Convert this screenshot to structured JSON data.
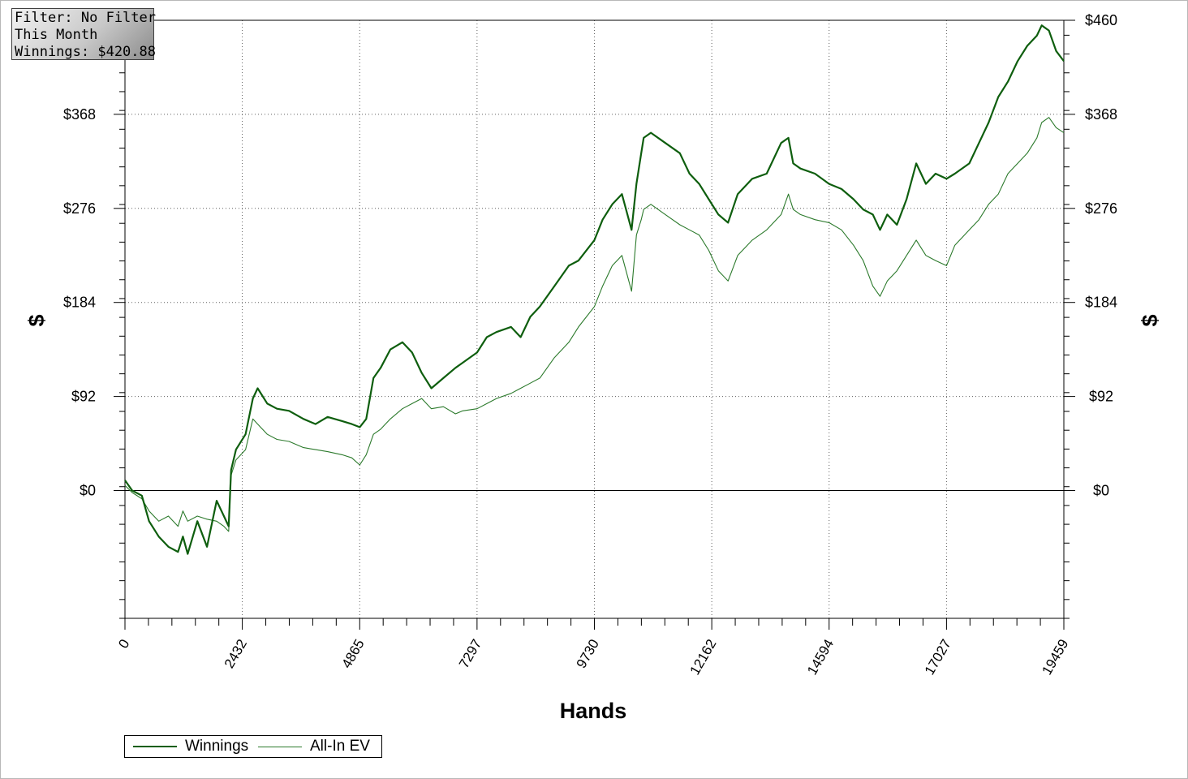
{
  "info_box": {
    "line1": "Filter: No Filter",
    "line2": "This Month",
    "line3": "Winnings: $420.88"
  },
  "colors": {
    "winnings": "#0e5e0e",
    "allin_ev": "#2c7a2c",
    "grid": "#606060",
    "axis": "#000000"
  },
  "chart_data": {
    "type": "line",
    "title": "",
    "xlabel": "Hands",
    "ylabel": "$",
    "xlim": [
      0,
      19459
    ],
    "ylim": [
      -125,
      460
    ],
    "x_ticks": [
      0,
      2432,
      4865,
      7297,
      9730,
      12162,
      14594,
      17027,
      19459
    ],
    "y_ticks": [
      0,
      92,
      184,
      276,
      368,
      460
    ],
    "y_tick_labels": [
      "$0",
      "$92",
      "$184",
      "$276",
      "$368",
      "$460"
    ],
    "grid": true,
    "legend": "bottom-left",
    "series": [
      {
        "name": "Winnings",
        "x": [
          0,
          150,
          350,
          500,
          700,
          900,
          1100,
          1200,
          1300,
          1500,
          1700,
          1900,
          2050,
          2150,
          2200,
          2300,
          2500,
          2650,
          2750,
          2950,
          3150,
          3400,
          3700,
          3950,
          4200,
          4500,
          4700,
          4865,
          5000,
          5150,
          5300,
          5500,
          5750,
          5950,
          6150,
          6350,
          6600,
          6850,
          7000,
          7297,
          7500,
          7700,
          8000,
          8200,
          8400,
          8600,
          8900,
          9200,
          9400,
          9730,
          9900,
          10100,
          10300,
          10500,
          10600,
          10700,
          10750,
          10900,
          11200,
          11500,
          11700,
          11900,
          12100,
          12300,
          12500,
          12700,
          13000,
          13300,
          13600,
          13750,
          13850,
          14000,
          14300,
          14594,
          14850,
          15100,
          15300,
          15500,
          15650,
          15800,
          16000,
          16200,
          16400,
          16600,
          16800,
          17027,
          17200,
          17500,
          17700,
          17900,
          18100,
          18300,
          18500,
          18700,
          18900,
          19000,
          19150,
          19300,
          19459
        ],
        "y": [
          10,
          0,
          -5,
          -30,
          -45,
          -55,
          -60,
          -45,
          -62,
          -30,
          -55,
          -10,
          -25,
          -35,
          20,
          40,
          55,
          90,
          100,
          85,
          80,
          78,
          70,
          65,
          72,
          68,
          65,
          62,
          70,
          110,
          120,
          138,
          145,
          135,
          115,
          100,
          110,
          120,
          125,
          135,
          150,
          155,
          160,
          150,
          170,
          180,
          200,
          220,
          225,
          245,
          265,
          280,
          290,
          255,
          300,
          330,
          345,
          350,
          340,
          330,
          310,
          300,
          285,
          270,
          262,
          290,
          305,
          310,
          340,
          345,
          320,
          315,
          310,
          300,
          295,
          285,
          275,
          270,
          255,
          270,
          260,
          285,
          320,
          300,
          310,
          305,
          310,
          320,
          340,
          360,
          385,
          400,
          420,
          435,
          445,
          455,
          450,
          430,
          420
        ]
      },
      {
        "name": "All-In EV",
        "x": [
          0,
          150,
          350,
          500,
          700,
          900,
          1100,
          1200,
          1300,
          1500,
          1700,
          1900,
          2050,
          2150,
          2200,
          2300,
          2500,
          2650,
          2750,
          2950,
          3150,
          3400,
          3700,
          3950,
          4200,
          4500,
          4700,
          4865,
          5000,
          5150,
          5300,
          5500,
          5750,
          5950,
          6150,
          6350,
          6600,
          6850,
          7000,
          7297,
          7500,
          7700,
          8000,
          8200,
          8400,
          8600,
          8900,
          9200,
          9400,
          9730,
          9900,
          10100,
          10300,
          10500,
          10600,
          10700,
          10750,
          10900,
          11200,
          11500,
          11700,
          11900,
          12100,
          12300,
          12500,
          12700,
          13000,
          13300,
          13600,
          13750,
          13850,
          14000,
          14300,
          14594,
          14850,
          15100,
          15300,
          15500,
          15650,
          15800,
          16000,
          16200,
          16400,
          16600,
          16800,
          17027,
          17200,
          17500,
          17700,
          17900,
          18100,
          18300,
          18500,
          18700,
          18900,
          19000,
          19150,
          19300,
          19459
        ],
        "y": [
          5,
          -2,
          -8,
          -20,
          -30,
          -25,
          -35,
          -20,
          -30,
          -25,
          -28,
          -30,
          -35,
          -40,
          15,
          30,
          40,
          70,
          65,
          55,
          50,
          48,
          42,
          40,
          38,
          35,
          32,
          25,
          35,
          55,
          60,
          70,
          80,
          85,
          90,
          80,
          82,
          75,
          78,
          80,
          85,
          90,
          95,
          100,
          105,
          110,
          130,
          145,
          160,
          180,
          200,
          220,
          230,
          195,
          250,
          265,
          275,
          280,
          270,
          260,
          255,
          250,
          235,
          215,
          205,
          230,
          245,
          255,
          270,
          290,
          275,
          270,
          265,
          262,
          255,
          240,
          225,
          200,
          190,
          205,
          215,
          230,
          245,
          230,
          225,
          220,
          240,
          255,
          265,
          280,
          290,
          310,
          320,
          330,
          345,
          360,
          365,
          355,
          350
        ]
      }
    ]
  }
}
